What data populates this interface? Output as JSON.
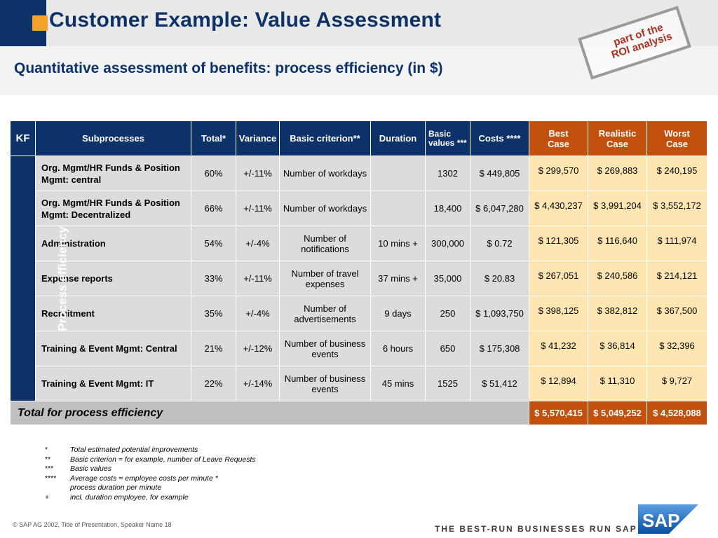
{
  "title": "Customer Example: Value Assessment",
  "subtitle": "Quantitative assessment of benefits: process efficiency (in $)",
  "stamp": {
    "line1": "part of the",
    "line2": "ROI analysis"
  },
  "table": {
    "headers": {
      "kf": "KF",
      "subprocesses": "Subprocesses",
      "total": "Total*",
      "variance": "Variance",
      "basic_criterion": "Basic criterion**",
      "duration": "Duration",
      "basic_values": "Basic values ***",
      "costs": "Costs ****",
      "best": "Best Case",
      "realistic": "Realistic Case",
      "worst": "Worst Case"
    },
    "kf_label": "Process efficiency",
    "rows": [
      {
        "sub": "Org. Mgmt/HR Funds & Position Mgmt: central",
        "total": "60%",
        "variance": "+/-11%",
        "criterion": "Number of workdays",
        "duration": "",
        "basic": "1302",
        "costs": "$ 449,805",
        "best": "$ 299,570",
        "realistic": "$ 269,883",
        "worst": "$ 240,195"
      },
      {
        "sub": "Org. Mgmt/HR Funds & Position Mgmt: Decentralized",
        "total": "66%",
        "variance": "+/-11%",
        "criterion": "Number of workdays",
        "duration": "",
        "basic": "18,400",
        "costs": "$ 6,047,280",
        "best": "$ 4,430,237",
        "realistic": "$ 3,991,204",
        "worst": "$ 3,552,172"
      },
      {
        "sub": "Administration",
        "total": "54%",
        "variance": "+/-4%",
        "criterion": "Number of notifications",
        "duration": "10 mins +",
        "basic": "300,000",
        "costs": "$ 0.72",
        "best": "$ 121,305",
        "realistic": "$ 116,640",
        "worst": "$ 111,974"
      },
      {
        "sub": "Expense reports",
        "total": "33%",
        "variance": "+/-11%",
        "criterion": "Number of travel expenses",
        "duration": "37 mins +",
        "basic": "35,000",
        "costs": "$ 20.83",
        "best": "$ 267,051",
        "realistic": "$ 240,586",
        "worst": "$ 214,121"
      },
      {
        "sub": "Recruitment",
        "total": "35%",
        "variance": "+/-4%",
        "criterion": "Number of advertisements",
        "duration": "9 days",
        "basic": "250",
        "costs": "$ 1,093,750",
        "best": "$ 398,125",
        "realistic": "$ 382,812",
        "worst": "$ 367,500"
      },
      {
        "sub": "Training & Event Mgmt: Central",
        "total": "21%",
        "variance": "+/-12%",
        "criterion": "Number of business events",
        "duration": "6 hours",
        "basic": "650",
        "costs": "$ 175,308",
        "best": "$ 41,232",
        "realistic": "$ 36,814",
        "worst": "$ 32,396"
      },
      {
        "sub": "Training & Event Mgmt: IT",
        "total": "22%",
        "variance": "+/-14%",
        "criterion": "Number of business events",
        "duration": "45 mins",
        "basic": "1525",
        "costs": "$ 51,412",
        "best": "$ 12,894",
        "realistic": "$ 11,310",
        "worst": "$ 9,727"
      }
    ],
    "total_row": {
      "label": "Total for process efficiency",
      "best": "$ 5,570,415",
      "realistic": "$ 5,049,252",
      "worst": "$ 4,528,088"
    }
  },
  "footnotes": [
    {
      "mark": "*",
      "text": "Total estimated potential improvements"
    },
    {
      "mark": "**",
      "text": "Basic criterion = for example, number of Leave Requests"
    },
    {
      "mark": "***",
      "text": "Basic values"
    },
    {
      "mark": "****",
      "text": "Average costs = employee costs per minute *"
    },
    {
      "mark": "",
      "text": "process duration per minute"
    },
    {
      "mark": "+",
      "text": "incl. duration employee, for example"
    }
  ],
  "footer": {
    "copyright": "©   SAP AG 2002, Title of Presentation, Speaker Name  18",
    "slogan": "THE BEST-RUN BUSINESSES RUN SAP",
    "logo_text": "SAP"
  },
  "colors": {
    "navy": "#0d3169",
    "orange_accent": "#f0a12e",
    "case_header": "#c25110",
    "case_cell": "#fde6b2",
    "stamp_text": "#b03020"
  }
}
